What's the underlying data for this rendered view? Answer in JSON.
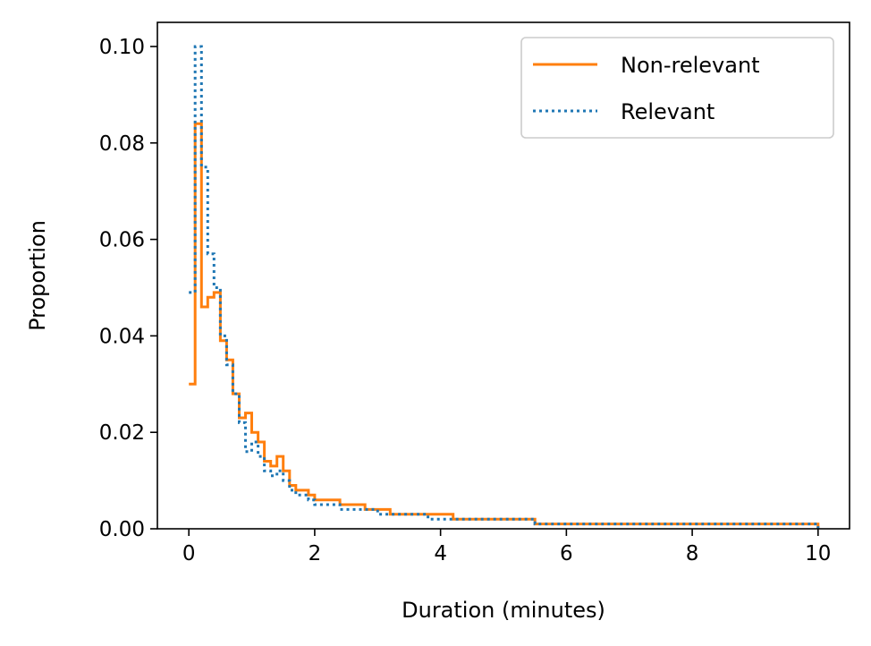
{
  "chart_data": {
    "type": "line",
    "title": "",
    "xlabel": "Duration (minutes)",
    "ylabel": "Proportion",
    "xlim": [
      -0.5,
      10.5
    ],
    "ylim": [
      0,
      0.105
    ],
    "xticks": [
      0,
      2,
      4,
      6,
      8,
      10
    ],
    "xtick_labels": [
      "0",
      "2",
      "4",
      "6",
      "8",
      "10"
    ],
    "yticks": [
      0,
      0.02,
      0.04,
      0.06,
      0.08,
      0.1
    ],
    "ytick_labels": [
      "0.00",
      "0.02",
      "0.04",
      "0.06",
      "0.08",
      "0.10"
    ],
    "grid": false,
    "legend_position": "upper right",
    "drawstyle": "steps-post",
    "series": [
      {
        "name": "Non-relevant",
        "color": "#ff7f0e",
        "linestyle": "solid",
        "x": [
          0.0,
          0.1,
          0.2,
          0.3,
          0.4,
          0.5,
          0.6,
          0.7,
          0.8,
          0.9,
          1.0,
          1.1,
          1.2,
          1.3,
          1.4,
          1.5,
          1.6,
          1.7,
          1.8,
          1.9,
          2.0,
          2.2,
          2.4,
          2.6,
          2.8,
          3.0,
          3.2,
          3.4,
          3.6,
          3.8,
          4.0,
          4.2,
          4.4,
          4.6,
          4.8,
          5.0,
          5.5,
          6.0,
          6.5,
          7.0,
          7.5,
          8.0,
          8.5,
          9.0,
          9.5,
          10.0
        ],
        "values": [
          0.03,
          0.084,
          0.046,
          0.048,
          0.049,
          0.039,
          0.035,
          0.028,
          0.023,
          0.024,
          0.02,
          0.018,
          0.014,
          0.013,
          0.015,
          0.012,
          0.009,
          0.008,
          0.008,
          0.007,
          0.006,
          0.006,
          0.005,
          0.005,
          0.004,
          0.004,
          0.003,
          0.003,
          0.003,
          0.003,
          0.003,
          0.002,
          0.002,
          0.002,
          0.002,
          0.002,
          0.001,
          0.001,
          0.001,
          0.001,
          0.001,
          0.001,
          0.001,
          0.001,
          0.001,
          0.0
        ]
      },
      {
        "name": "Relevant",
        "color": "#1f77b4",
        "linestyle": "dotted",
        "x": [
          0.0,
          0.1,
          0.2,
          0.3,
          0.4,
          0.5,
          0.6,
          0.7,
          0.8,
          0.9,
          1.0,
          1.1,
          1.2,
          1.3,
          1.4,
          1.5,
          1.6,
          1.7,
          1.8,
          1.9,
          2.0,
          2.2,
          2.4,
          2.6,
          2.8,
          3.0,
          3.2,
          3.4,
          3.6,
          3.8,
          4.0,
          4.2,
          4.4,
          4.6,
          4.8,
          5.0,
          5.5,
          6.0,
          6.5,
          7.0,
          7.5,
          8.0,
          8.5,
          9.0,
          9.5,
          10.0
        ],
        "values": [
          0.049,
          0.1,
          0.075,
          0.057,
          0.05,
          0.04,
          0.034,
          0.028,
          0.022,
          0.016,
          0.018,
          0.015,
          0.012,
          0.011,
          0.012,
          0.01,
          0.008,
          0.007,
          0.007,
          0.006,
          0.005,
          0.005,
          0.004,
          0.004,
          0.004,
          0.003,
          0.003,
          0.003,
          0.003,
          0.002,
          0.002,
          0.002,
          0.002,
          0.002,
          0.002,
          0.002,
          0.001,
          0.001,
          0.001,
          0.001,
          0.001,
          0.001,
          0.001,
          0.001,
          0.001,
          0.0
        ]
      }
    ]
  }
}
